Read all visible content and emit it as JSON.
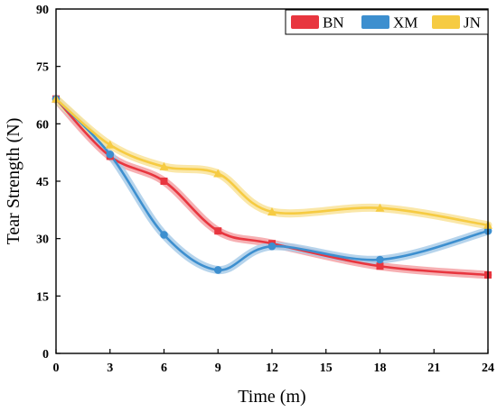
{
  "chart_data": {
    "type": "line",
    "xlabel": "Time (m)",
    "ylabel": "Tear Strength (N)",
    "x": [
      0,
      3,
      6,
      9,
      12,
      18,
      24
    ],
    "x_ticks": [
      0,
      3,
      6,
      9,
      12,
      15,
      18,
      21,
      24
    ],
    "y_ticks": [
      0,
      15,
      30,
      45,
      60,
      75,
      90
    ],
    "xlim": [
      0,
      24
    ],
    "ylim": [
      0,
      90
    ],
    "grid": false,
    "legend_position": "top-right",
    "series": [
      {
        "name": "BN",
        "color": "#e8363f",
        "band_color": "#f4a2a6",
        "marker": "square",
        "values": [
          66.5,
          51.5,
          45.0,
          32.0,
          28.7,
          22.8,
          20.5
        ]
      },
      {
        "name": "XM",
        "color": "#3d8fcf",
        "band_color": "#a9cce9",
        "marker": "circle",
        "values": [
          66.5,
          52.0,
          31.0,
          21.8,
          28.0,
          24.5,
          32.0
        ]
      },
      {
        "name": "JN",
        "color": "#f6cb42",
        "band_color": "#f9e39a",
        "marker": "triangle",
        "values": [
          66.5,
          54.5,
          48.8,
          47.0,
          37.0,
          38.0,
          33.5
        ]
      }
    ]
  }
}
